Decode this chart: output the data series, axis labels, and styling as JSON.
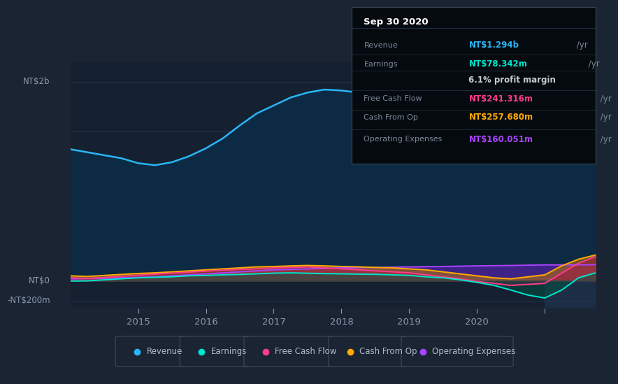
{
  "bg_color": "#1b2433",
  "plot_bg_color": "#152030",
  "grid_color": "#253b54",
  "title_box": {
    "date": "Sep 30 2020",
    "rows": [
      {
        "label": "Revenue",
        "value": "NT$1.294b /yr",
        "value_color": "#29b6f6"
      },
      {
        "label": "Earnings",
        "value": "NT$78.342m /yr",
        "value_color": "#00e5cc"
      },
      {
        "label": "",
        "value": "6.1% profit margin",
        "value_color": "#cccccc"
      },
      {
        "label": "Free Cash Flow",
        "value": "NT$241.316m /yr",
        "value_color": "#ff3d8a"
      },
      {
        "label": "Cash From Op",
        "value": "NT$257.680m /yr",
        "value_color": "#ffaa00"
      },
      {
        "label": "Operating Expenses",
        "value": "NT$160.051m /yr",
        "value_color": "#aa44ff"
      }
    ]
  },
  "revenue_values": [
    1320,
    1290,
    1260,
    1230,
    1180,
    1160,
    1190,
    1250,
    1330,
    1430,
    1560,
    1680,
    1760,
    1840,
    1890,
    1920,
    1910,
    1890,
    1900,
    1910,
    1890,
    1880,
    1870,
    1860,
    1850,
    1820,
    1780,
    1720,
    1640,
    1540,
    1350,
    1294
  ],
  "earnings_values": [
    -5,
    -3,
    8,
    18,
    28,
    33,
    38,
    48,
    52,
    58,
    62,
    68,
    75,
    78,
    74,
    70,
    68,
    65,
    63,
    58,
    52,
    38,
    28,
    8,
    -18,
    -48,
    -95,
    -145,
    -175,
    -95,
    28,
    78
  ],
  "fcf_values": [
    28,
    22,
    32,
    42,
    55,
    65,
    75,
    85,
    95,
    105,
    112,
    118,
    128,
    132,
    138,
    128,
    118,
    108,
    98,
    88,
    78,
    58,
    38,
    18,
    -8,
    -28,
    -48,
    -38,
    -28,
    75,
    175,
    241
  ],
  "cop_values": [
    48,
    42,
    52,
    62,
    72,
    78,
    88,
    98,
    108,
    118,
    128,
    138,
    142,
    148,
    152,
    148,
    142,
    138,
    132,
    128,
    118,
    108,
    88,
    68,
    48,
    28,
    18,
    38,
    58,
    148,
    215,
    258
  ],
  "opex_values": [
    18,
    20,
    23,
    28,
    33,
    38,
    48,
    58,
    68,
    78,
    88,
    98,
    108,
    112,
    118,
    122,
    128,
    130,
    132,
    135,
    138,
    140,
    142,
    145,
    148,
    150,
    152,
    155,
    158,
    158,
    158,
    160
  ],
  "x_tick_positions": [
    4,
    8,
    12,
    16,
    20,
    24,
    28
  ],
  "x_tick_labels": [
    "2015",
    "2016",
    "2017",
    "2018",
    "2019",
    "2020",
    ""
  ],
  "ylim": [
    -280,
    2200
  ],
  "ytick_vals": [
    -200,
    0,
    2000
  ],
  "ytick_labels": [
    "-NT$200m",
    "NT$0",
    "NT$2b"
  ],
  "revenue_color": "#29b6f6",
  "earnings_color": "#00e5cc",
  "fcf_color": "#ff3d8a",
  "cop_color": "#ffaa00",
  "opex_color": "#aa44ff",
  "legend_items": [
    {
      "label": "Revenue",
      "color": "#29b6f6"
    },
    {
      "label": "Earnings",
      "color": "#00e5cc"
    },
    {
      "label": "Free Cash Flow",
      "color": "#ff3d8a"
    },
    {
      "label": "Cash From Op",
      "color": "#ffaa00"
    },
    {
      "label": "Operating Expenses",
      "color": "#aa44ff"
    }
  ]
}
